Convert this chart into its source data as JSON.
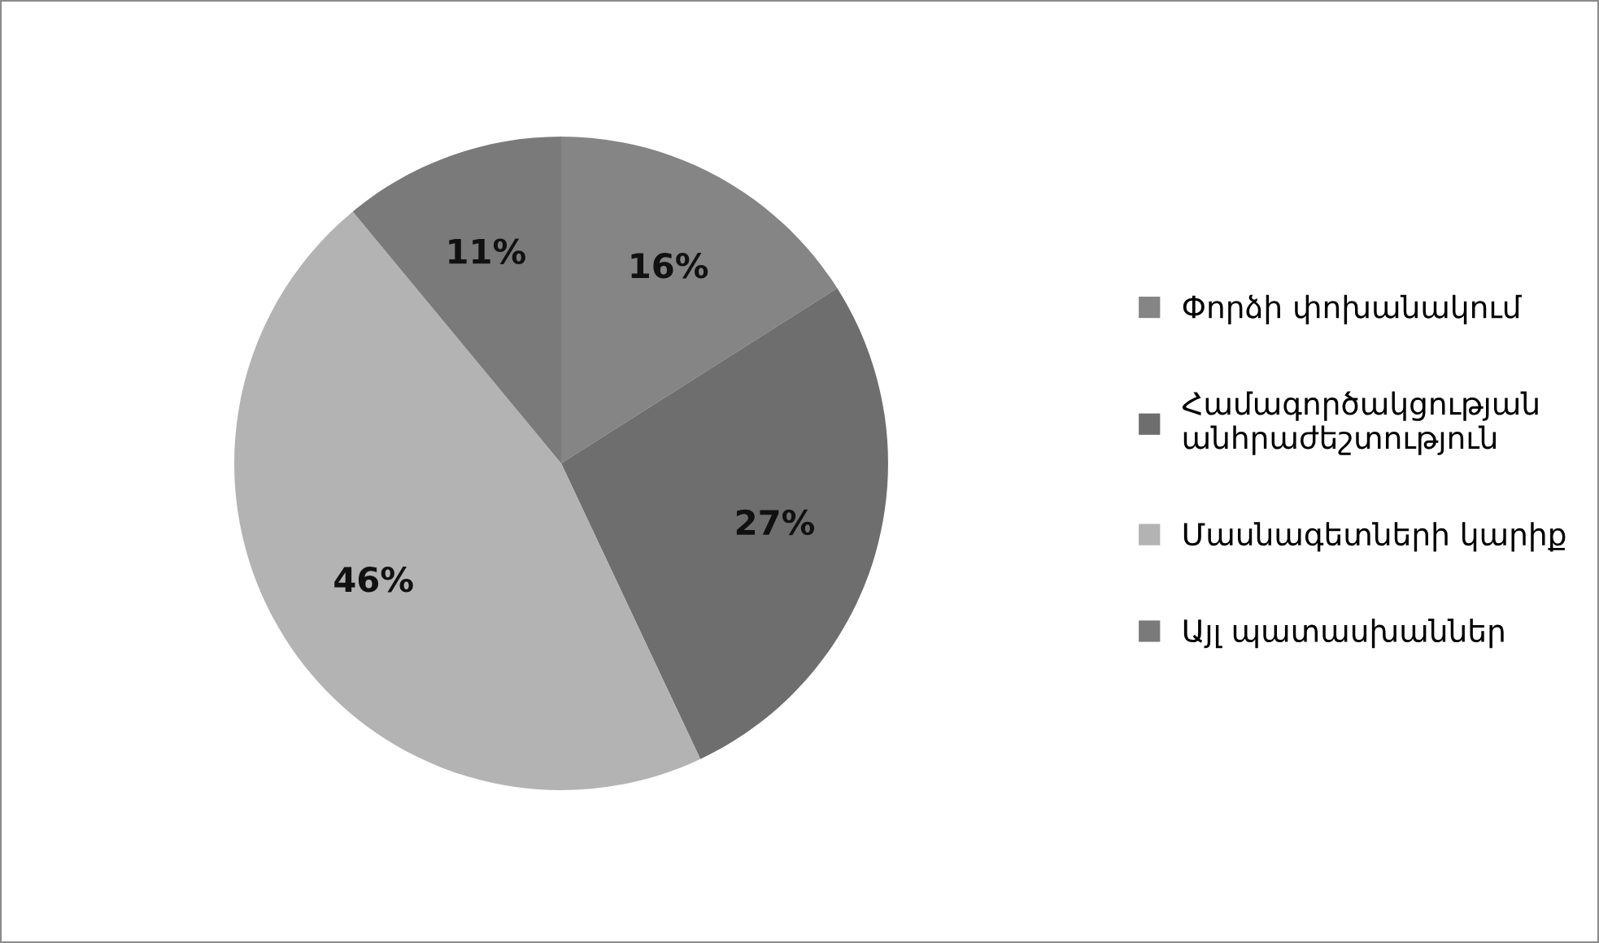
{
  "chart_data": {
    "type": "pie",
    "categories": [
      "Փորձի փոխանակում",
      "Համագործակցության անհրաժեշտություն",
      "Մասնագետների կարիք",
      "Այլ պատասխաններ"
    ],
    "values": [
      16,
      27,
      46,
      11
    ],
    "colors": [
      "#858585",
      "#6e6e6e",
      "#b3b3b3",
      "#7a7a7a"
    ],
    "value_labels": [
      "16%",
      "27%",
      "46%",
      "11%"
    ],
    "legend": "right"
  }
}
